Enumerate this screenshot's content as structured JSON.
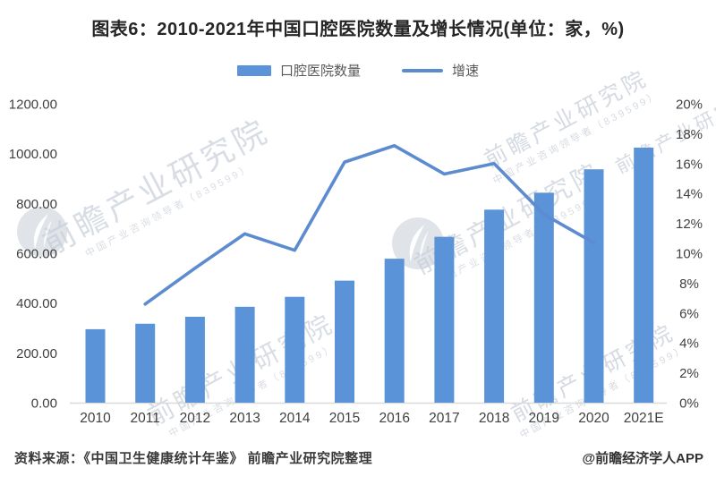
{
  "title": "图表6：2010-2021年中国口腔医院数量及增长情况(单位：家，%)",
  "legend": {
    "bars_label": "口腔医院数量",
    "line_label": "增速"
  },
  "footer": {
    "source": "资料来源：《中国卫生健康统计年鉴》 前瞻产业研究院整理",
    "credit": "@前瞻经济学人APP"
  },
  "watermark": {
    "text": "前瞻产业研究院",
    "subtext": "中国产业咨询领导者（839599）"
  },
  "colors": {
    "bar": "#5B93D8",
    "line": "#5C8BD0",
    "axis_text": "#404040",
    "title_text": "#262626",
    "legend_text": "#595959",
    "baseline": "#D9D9D9",
    "watermark": "#B3BDCB"
  },
  "chart_data": {
    "type": "bar",
    "subtype": "bar+line combo",
    "title": "2010-2021年中国口腔医院数量及增长情况",
    "units": "家，%",
    "categories": [
      "2010",
      "2011",
      "2012",
      "2013",
      "2014",
      "2015",
      "2016",
      "2017",
      "2018",
      "2019",
      "2020",
      "2021E"
    ],
    "series": [
      {
        "name": "口腔医院数量",
        "type": "bar",
        "axis": "left",
        "unit": "家",
        "values": [
          295,
          317,
          345,
          385,
          425,
          490,
          578,
          666,
          775,
          843,
          937,
          1024
        ]
      },
      {
        "name": "增速",
        "type": "line",
        "axis": "right",
        "unit": "%",
        "values": [
          null,
          6.6,
          9.0,
          11.3,
          10.2,
          16.1,
          17.2,
          15.3,
          16.0,
          12.6,
          10.7,
          null
        ]
      }
    ],
    "left_axis": {
      "min": 0,
      "max": 1200,
      "step": 200,
      "ticks": [
        "0.00",
        "200.00",
        "400.00",
        "600.00",
        "800.00",
        "1000.00",
        "1200.00"
      ]
    },
    "right_axis": {
      "min": 0,
      "max": 20,
      "step": 2,
      "ticks": [
        "0%",
        "2%",
        "4%",
        "6%",
        "8%",
        "10%",
        "12%",
        "14%",
        "16%",
        "18%",
        "20%"
      ]
    },
    "grid": false,
    "legend_position": "top"
  }
}
